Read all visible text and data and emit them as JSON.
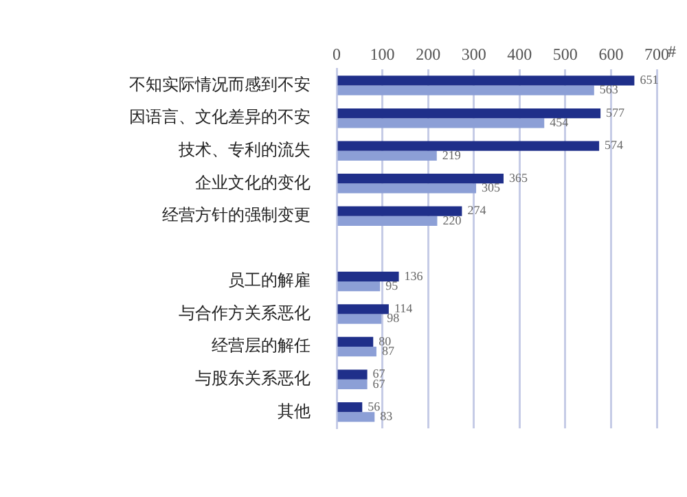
{
  "chart_data": {
    "type": "bar",
    "orientation": "horizontal",
    "xlabel": "#",
    "categories": [
      "不知实际情况而感到不安",
      "因语言、文化差异的不安",
      "技术、专利的流失",
      "企业文化的变化",
      "经营方针的强制变更",
      null,
      "员工的解雇",
      "与合作方关系恶化",
      "经营层的解任",
      "与股东关系恶化",
      "其他"
    ],
    "series": [
      {
        "color": "#1f2f8a",
        "values": [
          651,
          577,
          574,
          365,
          274,
          null,
          136,
          114,
          80,
          67,
          56
        ]
      },
      {
        "color": "#8c9fd6",
        "values": [
          563,
          454,
          219,
          305,
          220,
          null,
          95,
          98,
          87,
          67,
          83
        ]
      }
    ],
    "xlim": [
      0,
      700
    ],
    "xticks": [
      0,
      100,
      200,
      300,
      400,
      500,
      600,
      700
    ],
    "grid": "x",
    "data_labels": true
  }
}
